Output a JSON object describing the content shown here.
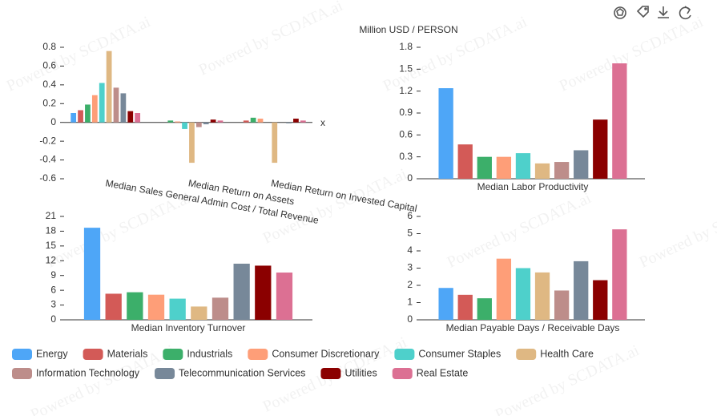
{
  "watermark": "Powered by SCDATA.ai",
  "legend": {
    "series": [
      {
        "name": "Energy",
        "color": "#4ea6f7"
      },
      {
        "name": "Materials",
        "color": "#d35a57"
      },
      {
        "name": "Industrials",
        "color": "#3caf6a"
      },
      {
        "name": "Consumer Discretionary",
        "color": "#fe9e78"
      },
      {
        "name": "Consumer Staples",
        "color": "#4ed0cb"
      },
      {
        "name": "Health Care",
        "color": "#dfb883"
      },
      {
        "name": "Information Technology",
        "color": "#bd8d8a"
      },
      {
        "name": "Telecommunication Services",
        "color": "#778899"
      },
      {
        "name": "Utilities",
        "color": "#8b0000"
      },
      {
        "name": "Real Estate",
        "color": "#dc7093"
      }
    ]
  },
  "chart_data": [
    {
      "type": "bar",
      "x_label": "x",
      "categories": [
        "Median Sales General Admin Cost / Total Revenue",
        "Median Return on Assets",
        "Median Return on Invested Capital"
      ],
      "series": [
        {
          "values": [
            0.1,
            0.0,
            0.0
          ]
        },
        {
          "values": [
            0.13,
            0.0,
            0.02
          ]
        },
        {
          "values": [
            0.19,
            0.02,
            0.05
          ]
        },
        {
          "values": [
            0.29,
            0.01,
            0.04
          ]
        },
        {
          "values": [
            0.42,
            -0.07,
            0.0
          ]
        },
        {
          "values": [
            0.76,
            -0.43,
            -0.43
          ]
        },
        {
          "values": [
            0.37,
            -0.05,
            0.0
          ]
        },
        {
          "values": [
            0.31,
            -0.02,
            -0.01
          ]
        },
        {
          "values": [
            0.12,
            0.03,
            0.04
          ]
        },
        {
          "values": [
            0.1,
            0.02,
            0.02
          ]
        }
      ],
      "ylim": [
        -0.6,
        0.8
      ],
      "yticks": [
        -0.6,
        -0.4,
        -0.2,
        0,
        0.2,
        0.4,
        0.6,
        0.8
      ]
    },
    {
      "type": "bar",
      "y_label": "Million USD / PERSON",
      "categories": [
        "Median Labor Productivity"
      ],
      "series": [
        {
          "values": [
            1.24
          ]
        },
        {
          "values": [
            0.47
          ]
        },
        {
          "values": [
            0.3
          ]
        },
        {
          "values": [
            0.3
          ]
        },
        {
          "values": [
            0.35
          ]
        },
        {
          "values": [
            0.21
          ]
        },
        {
          "values": [
            0.23
          ]
        },
        {
          "values": [
            0.39
          ]
        },
        {
          "values": [
            0.81
          ]
        },
        {
          "values": [
            1.58
          ]
        }
      ],
      "ylim": [
        0,
        1.8
      ],
      "yticks": [
        0,
        0.3,
        0.6,
        0.9,
        1.2,
        1.5,
        1.8
      ]
    },
    {
      "type": "bar",
      "categories": [
        "Median Inventory Turnover"
      ],
      "series": [
        {
          "values": [
            18.7
          ]
        },
        {
          "values": [
            5.3
          ]
        },
        {
          "values": [
            5.6
          ]
        },
        {
          "values": [
            5.1
          ]
        },
        {
          "values": [
            4.3
          ]
        },
        {
          "values": [
            2.7
          ]
        },
        {
          "values": [
            4.5
          ]
        },
        {
          "values": [
            11.4
          ]
        },
        {
          "values": [
            11.0
          ]
        },
        {
          "values": [
            9.6
          ]
        }
      ],
      "ylim": [
        0,
        21
      ],
      "yticks": [
        0,
        3,
        6,
        9,
        12,
        15,
        18,
        21
      ]
    },
    {
      "type": "bar",
      "categories": [
        "Median Payable Days / Receivable Days"
      ],
      "series": [
        {
          "values": [
            1.85
          ]
        },
        {
          "values": [
            1.45
          ]
        },
        {
          "values": [
            1.25
          ]
        },
        {
          "values": [
            3.55
          ]
        },
        {
          "values": [
            3.0
          ]
        },
        {
          "values": [
            2.75
          ]
        },
        {
          "values": [
            1.7
          ]
        },
        {
          "values": [
            3.4
          ]
        },
        {
          "values": [
            2.3
          ]
        },
        {
          "values": [
            5.25
          ]
        }
      ],
      "ylim": [
        0,
        6
      ],
      "yticks": [
        0,
        1,
        2,
        3,
        4,
        5,
        6
      ]
    }
  ]
}
